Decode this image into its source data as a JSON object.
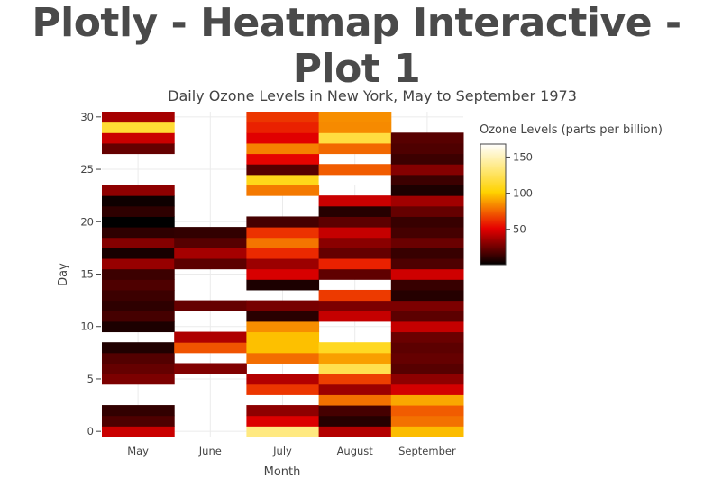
{
  "page": {
    "heading": "Plotly - Heatmap Interactive - Plot 1"
  },
  "chart_data": {
    "type": "heatmap",
    "title": "Daily Ozone Levels in New York, May to September 1973",
    "xlabel": "Month",
    "ylabel": "Day",
    "categories": [
      "May",
      "June",
      "July",
      "August",
      "September"
    ],
    "y_ticks": [
      0,
      5,
      10,
      15,
      20,
      25,
      30
    ],
    "ylim": [
      -0.5,
      30.5
    ],
    "grid": true,
    "colorscale": "Hot",
    "colorbar": {
      "title": "Ozone Levels (parts per billion)",
      "ticks": [
        50,
        100,
        150
      ],
      "range": [
        1,
        168
      ]
    },
    "z": [
      [
        45,
        null,
        135,
        40,
        96
      ],
      [
        18,
        null,
        49,
        9,
        78
      ],
      [
        12,
        null,
        32,
        16,
        73
      ],
      [
        null,
        null,
        null,
        78,
        91
      ],
      [
        null,
        null,
        64,
        35,
        47
      ],
      [
        28,
        null,
        40,
        66,
        32
      ],
      [
        23,
        29,
        null,
        122,
        20
      ],
      [
        19,
        null,
        77,
        89,
        23
      ],
      [
        8,
        71,
        97,
        110,
        21
      ],
      [
        null,
        39,
        97,
        null,
        24
      ],
      [
        7,
        null,
        85,
        null,
        44
      ],
      [
        16,
        null,
        10,
        44,
        21
      ],
      [
        11,
        23,
        27,
        28,
        28
      ],
      [
        14,
        null,
        null,
        65,
        9
      ],
      [
        18,
        null,
        7,
        null,
        13
      ],
      [
        14,
        null,
        48,
        22,
        46
      ],
      [
        34,
        21,
        35,
        59,
        18
      ],
      [
        6,
        37,
        61,
        23,
        13
      ],
      [
        30,
        20,
        79,
        31,
        24
      ],
      [
        11,
        12,
        63,
        44,
        16
      ],
      [
        1,
        null,
        16,
        21,
        13
      ],
      [
        11,
        null,
        null,
        9,
        23
      ],
      [
        4,
        null,
        null,
        45,
        36
      ],
      [
        32,
        null,
        80,
        null,
        7
      ],
      [
        null,
        null,
        108,
        168,
        14
      ],
      [
        null,
        null,
        20,
        73,
        30
      ],
      [
        null,
        null,
        52,
        null,
        14
      ],
      [
        23,
        null,
        82,
        76,
        18
      ],
      [
        45,
        null,
        50,
        118,
        20
      ],
      [
        115,
        null,
        59,
        84,
        null
      ],
      [
        37,
        null,
        64,
        85,
        null
      ]
    ]
  }
}
